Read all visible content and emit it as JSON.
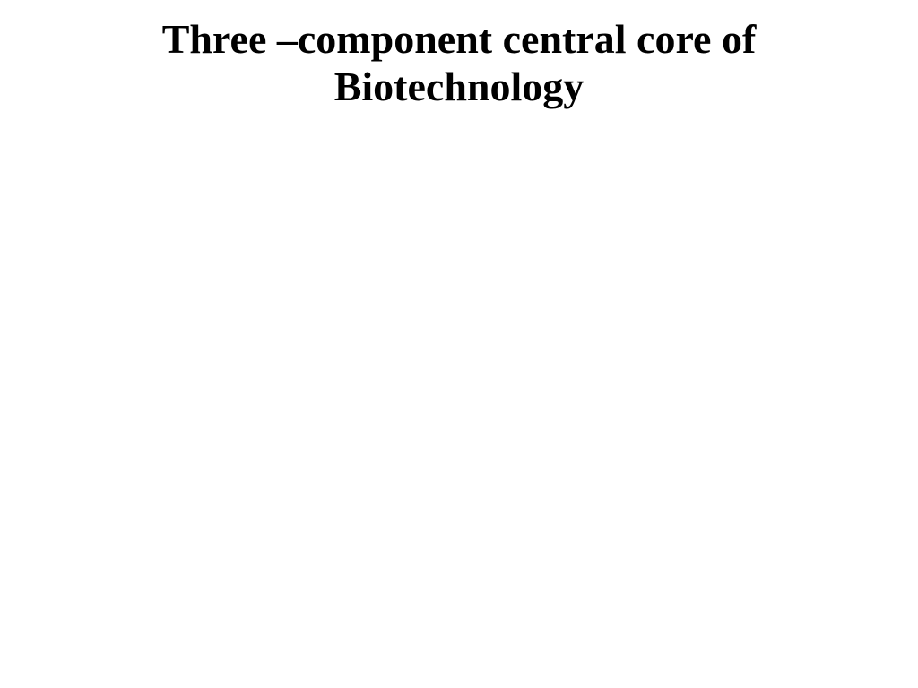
{
  "slide": {
    "title_line1": "Three –component central core of",
    "title_line2": "Biotechnology",
    "title_fontsize": 46,
    "title_fontweight": "bold",
    "title_color": "#000000",
    "background_color": "#ffffff",
    "font_family": "Times New Roman"
  }
}
